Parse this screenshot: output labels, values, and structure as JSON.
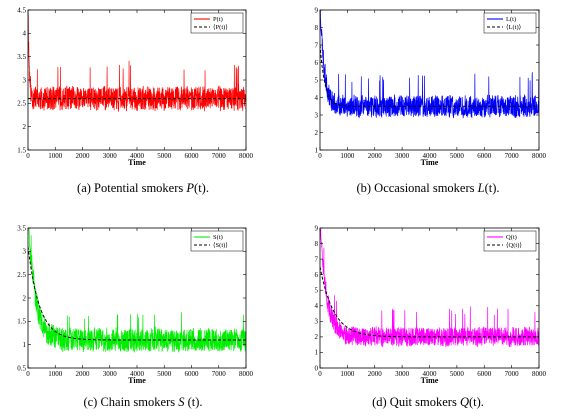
{
  "charts": [
    {
      "id": "a",
      "caption": {
        "prefix": "(a)  Potential smokers ",
        "var": "P",
        "suffix": "(t)."
      },
      "chart_data": {
        "type": "line",
        "xlabel": "Time",
        "xlim": [
          0,
          8000
        ],
        "ylim": [
          1.5,
          4.5
        ],
        "xticks": [
          0,
          1000,
          2000,
          3000,
          4000,
          5000,
          6000,
          7000,
          8000
        ],
        "yticks": [
          1.5,
          2,
          2.5,
          3,
          3.5,
          4,
          4.5
        ],
        "series": [
          {
            "name": "P(t)",
            "color": "#ff0000",
            "style": "noisy",
            "start": 4.5,
            "mean": 2.6,
            "amp": 0.45,
            "spike": 4.1,
            "min": 1.7,
            "decay": 40,
            "seed": 11
          },
          {
            "name": "⟨P(t)⟩",
            "color": "#000000",
            "style": "mean",
            "start": 2.6,
            "mean": 2.6,
            "decay": 30
          }
        ]
      }
    },
    {
      "id": "b",
      "caption": {
        "prefix": "(b)  Occasional smokers ",
        "var": "L",
        "suffix": "(t)."
      },
      "chart_data": {
        "type": "line",
        "xlabel": "Time",
        "xlim": [
          0,
          8000
        ],
        "ylim": [
          1,
          9
        ],
        "xticks": [
          0,
          1000,
          2000,
          3000,
          4000,
          5000,
          6000,
          7000,
          8000
        ],
        "yticks": [
          1,
          2,
          3,
          4,
          5,
          6,
          7,
          8,
          9
        ],
        "series": [
          {
            "name": "L(t)",
            "color": "#0000ff",
            "style": "noisy",
            "start": 8.8,
            "mean": 3.5,
            "amp": 1.1,
            "spike": 6.8,
            "min": 2.0,
            "decay": 150,
            "seed": 23
          },
          {
            "name": "⟨L(t)⟩",
            "color": "#000000",
            "style": "mean",
            "start": 7.0,
            "mean": 3.5,
            "decay": 180
          }
        ]
      }
    },
    {
      "id": "c",
      "caption": {
        "prefix": "(c)  Chain smokers ",
        "var": "S",
        "suffix": " (t)."
      },
      "chart_data": {
        "type": "line",
        "xlabel": "Time",
        "xlim": [
          0,
          8000
        ],
        "ylim": [
          0.5,
          3.5
        ],
        "xticks": [
          0,
          1000,
          2000,
          3000,
          4000,
          5000,
          6000,
          7000,
          8000
        ],
        "yticks": [
          0.5,
          1,
          1.5,
          2,
          2.5,
          3,
          3.5
        ],
        "series": [
          {
            "name": "S(t)",
            "color": "#00ee00",
            "style": "noisy",
            "start": 3.5,
            "mean": 1.1,
            "amp": 0.45,
            "spike": 2.2,
            "min": 0.8,
            "decay": 250,
            "seed": 37
          },
          {
            "name": "⟨S(t)⟩",
            "color": "#000000",
            "style": "mean",
            "start": 3.1,
            "mean": 1.1,
            "decay": 420
          }
        ]
      }
    },
    {
      "id": "d",
      "caption": {
        "prefix": "(d)  Quit smokers ",
        "var": "Q",
        "suffix": "(t)."
      },
      "chart_data": {
        "type": "line",
        "xlabel": "Time",
        "xlim": [
          0,
          8000
        ],
        "ylim": [
          0,
          9
        ],
        "xticks": [
          0,
          1000,
          2000,
          3000,
          4000,
          5000,
          6000,
          7000,
          8000
        ],
        "yticks": [
          0,
          1,
          2,
          3,
          4,
          5,
          6,
          7,
          8,
          9
        ],
        "series": [
          {
            "name": "Q(t)",
            "color": "#ff00ff",
            "style": "noisy",
            "start": 8.2,
            "mean": 2.0,
            "amp": 1.1,
            "spike": 5.5,
            "min": 1.0,
            "decay": 250,
            "seed": 51
          },
          {
            "name": "⟨Q(t)⟩",
            "color": "#000000",
            "style": "mean",
            "start": 6.5,
            "mean": 2.0,
            "decay": 500
          }
        ]
      }
    }
  ]
}
